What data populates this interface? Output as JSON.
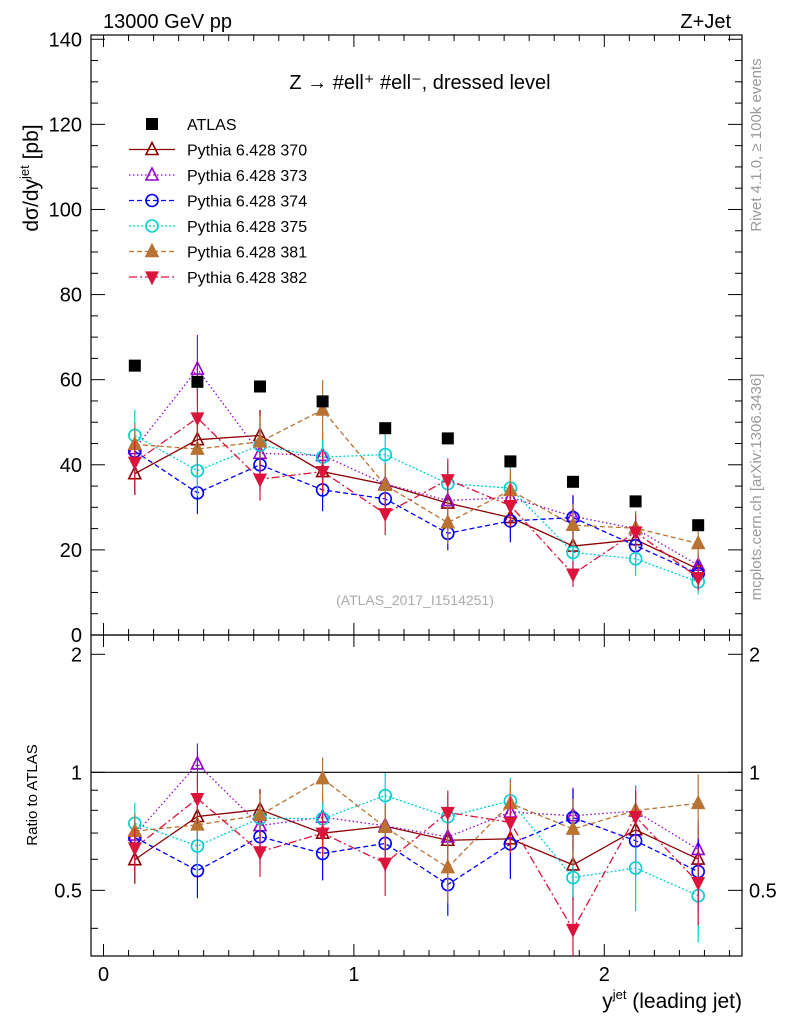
{
  "header": {
    "left": "13000 GeV pp",
    "right": "Z+Jet"
  },
  "side_text": {
    "rivet": "Rivet 4.1.0, ≥ 100k events",
    "mcplots": "mcplots.cern.ch [arXiv:1306.3436]"
  },
  "chart_data": {
    "type": "scatter",
    "title": "Z → #ell⁺ #ell⁻, dressed level",
    "watermark": "(ATLAS_2017_I1514251)",
    "xlabel": "y^jet (leading jet)",
    "xlabel_main": "y",
    "xlabel_sup": "jet",
    "xlabel_rest": " (leading jet)",
    "ylabel": "dσ/dy^jet [pb]",
    "ylabel_main": "dσ/dy",
    "ylabel_sup": "jet",
    "ylabel_rest": " [pb]",
    "ratio_ylabel": "Ratio to ATLAS",
    "xlim": [
      -0.05,
      2.55
    ],
    "ylim": [
      0,
      141
    ],
    "ratio_ylim": [
      0.34,
      2.24
    ],
    "x_ticks": [
      "0",
      "1",
      "2"
    ],
    "y_ticks": [
      "0",
      "20",
      "40",
      "60",
      "80",
      "100",
      "120",
      "140"
    ],
    "ratio_ticks": [
      "0.5",
      "1",
      "2"
    ],
    "x": [
      0.125,
      0.375,
      0.625,
      0.875,
      1.125,
      1.375,
      1.625,
      1.875,
      2.125,
      2.375
    ],
    "data": {
      "name": "ATLAS",
      "values": [
        63.3,
        59.5,
        58.4,
        54.9,
        48.6,
        46.2,
        40.8,
        36.0,
        31.4,
        25.8
      ],
      "errors": [
        1.2,
        1.2,
        1.2,
        1.2,
        1.0,
        1.0,
        1.0,
        0.9,
        0.8,
        0.8
      ]
    },
    "series": [
      {
        "name": "Pythia 6.428 370",
        "color": "#8b0000",
        "dash": "",
        "marker": "triangle-up-open",
        "values": [
          37.9,
          45.9,
          46.9,
          38.4,
          35.4,
          31.0,
          27.6,
          20.9,
          22.4,
          15.5
        ],
        "errors": [
          5,
          6,
          6,
          5,
          5,
          5,
          5,
          4,
          4,
          3
        ]
      },
      {
        "name": "Pythia 6.428 373",
        "color": "#9400d3",
        "dash": "1.5,2.5",
        "marker": "triangle-up-open",
        "values": [
          43.8,
          62.5,
          42.7,
          42.2,
          35.5,
          31.6,
          32.3,
          27.9,
          25.0,
          16.4
        ],
        "errors": [
          5,
          8,
          6,
          5,
          5,
          5,
          5,
          5,
          4,
          3
        ]
      },
      {
        "name": "Pythia 6.428 374",
        "color": "#0000ff",
        "dash": "5,3",
        "marker": "circle-open",
        "values": [
          43.2,
          33.4,
          40.0,
          34.1,
          32.0,
          23.9,
          26.8,
          27.6,
          21.0,
          14.4
        ],
        "errors": [
          5,
          5,
          6,
          5,
          5,
          4,
          5,
          5,
          4,
          3
        ]
      },
      {
        "name": "Pythia 6.428 375",
        "color": "#00ced1",
        "dash": "2,2",
        "marker": "circle-open",
        "values": [
          46.9,
          38.6,
          44.6,
          41.8,
          42.4,
          35.6,
          34.5,
          19.4,
          17.9,
          12.5
        ],
        "errors": [
          6,
          6,
          6,
          6,
          6,
          5,
          5,
          4,
          4,
          3
        ]
      },
      {
        "name": "Pythia 6.428 381",
        "color": "#b87333",
        "dash": "5,3",
        "marker": "triangle-up-filled",
        "values": [
          44.8,
          43.7,
          45.4,
          52.9,
          35.2,
          26.4,
          34.0,
          25.8,
          25.1,
          21.5
        ],
        "errors": [
          5,
          6,
          6,
          7,
          5,
          5,
          5,
          5,
          4,
          4
        ]
      },
      {
        "name": "Pythia 6.428 382",
        "color": "#dc143c",
        "dash": "8,3,2,3",
        "marker": "triangle-down-filled",
        "values": [
          40.6,
          51.0,
          36.6,
          38.4,
          28.5,
          36.5,
          30.4,
          14.3,
          24.2,
          13.5
        ],
        "errors": [
          5,
          7,
          5,
          5,
          5,
          5,
          5,
          3,
          4,
          3
        ]
      }
    ]
  }
}
